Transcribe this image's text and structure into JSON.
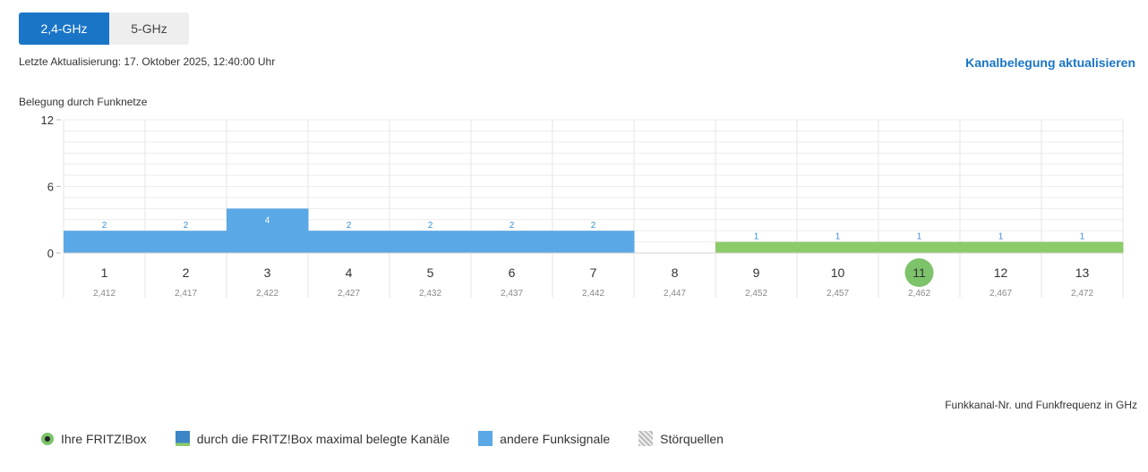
{
  "tabs": [
    {
      "label": "2,4-GHz",
      "active": true
    },
    {
      "label": "5-GHz",
      "active": false
    }
  ],
  "last_update": "Letzte Aktualisierung: 17. Oktober 2025, 12:40:00 Uhr",
  "refresh_link": "Kanalbelegung aktualisieren",
  "chart_title": "Belegung durch Funknetze",
  "axis_caption": "Funkkanal-Nr. und Funkfrequenz in GHz",
  "colors": {
    "other_signals": "#5aa8e6",
    "fritzbox_channels": "#8ccb6a",
    "own_channel_marker": "#7cc36a",
    "tab_active": "#1a75c7"
  },
  "chart_data": {
    "type": "bar",
    "title": "Belegung durch Funknetze",
    "xlabel": "Funkkanal-Nr. und Funkfrequenz in GHz",
    "ylabel": "",
    "ylim": [
      0,
      12
    ],
    "yticks": [
      0,
      6,
      12
    ],
    "categories": [
      "1",
      "2",
      "3",
      "4",
      "5",
      "6",
      "7",
      "8",
      "9",
      "10",
      "11",
      "12",
      "13"
    ],
    "frequencies": [
      "2,412",
      "2,417",
      "2,422",
      "2,427",
      "2,432",
      "2,437",
      "2,442",
      "2,447",
      "2,452",
      "2,457",
      "2,462",
      "2,467",
      "2,472"
    ],
    "series": [
      {
        "name": "andere Funksignale",
        "values": [
          2,
          2,
          4,
          2,
          2,
          2,
          2,
          0,
          0,
          0,
          0,
          0,
          0
        ]
      },
      {
        "name": "durch die FRITZ!Box maximal belegte Kanäle",
        "values": [
          0,
          0,
          0,
          0,
          0,
          0,
          0,
          0,
          1,
          1,
          1,
          1,
          1
        ]
      }
    ],
    "own_channel": "11",
    "grid": true
  },
  "legend": [
    {
      "label": "Ihre FRITZ!Box",
      "icon": "own-fritzbox-dot"
    },
    {
      "label": "durch die FRITZ!Box maximal belegte Kanäle",
      "icon": "max-channels-swatch"
    },
    {
      "label": "andere Funksignale",
      "icon": "other-signals-swatch"
    },
    {
      "label": "Störquellen",
      "icon": "interference-swatch"
    }
  ]
}
